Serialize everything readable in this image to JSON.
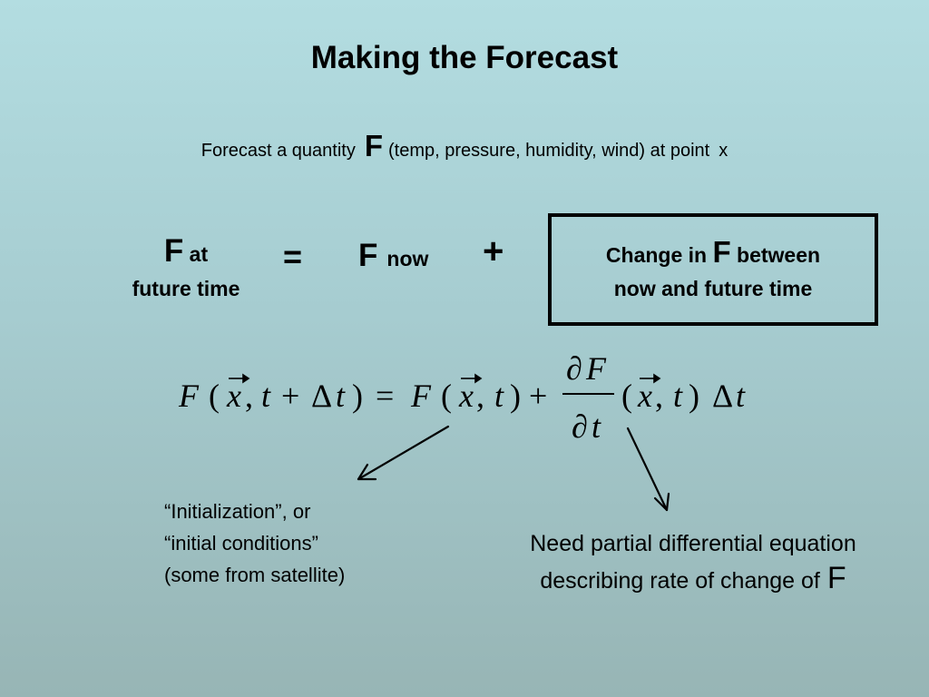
{
  "title": "Making the Forecast",
  "subtitle": {
    "prefix": "Forecast a quantity",
    "symbol": "F",
    "suffix": "(temp, pressure, humidity, wind) at point",
    "point": "x"
  },
  "equation_words": {
    "lhs_symbol": "F",
    "lhs_at": "at",
    "lhs_line2": "future time",
    "equals": "=",
    "now_symbol": "F",
    "now_label": "now",
    "plus": "+",
    "box_prefix": "Change in",
    "box_symbol": "F",
    "box_suffix": "between",
    "box_line2": "now and future time"
  },
  "formula": {
    "F": "F",
    "lparen": "(",
    "rparen": ")",
    "x": "x",
    "comma": ",",
    "t": "t",
    "plus": "+",
    "delta": "Δ",
    "equals": "=",
    "partial": "∂"
  },
  "notes": {
    "init_line1": "“Initialization”, or",
    "init_line2": "“initial conditions”",
    "init_line3": "(some from satellite)",
    "need_line1": "Need partial differential equation",
    "need_line2": "describing rate of change of",
    "need_symbol": "F"
  }
}
